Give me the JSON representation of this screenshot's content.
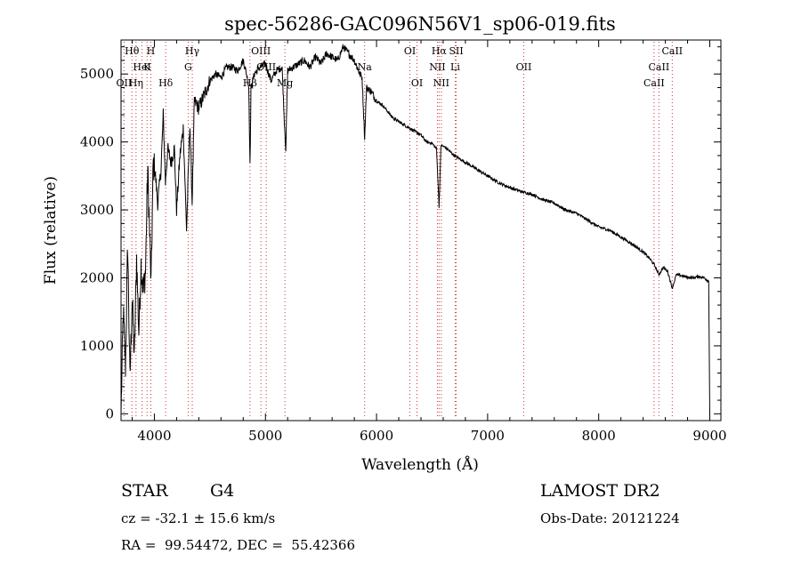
{
  "chart_data": {
    "type": "line",
    "title": "spec-56286-GAC096N56V1_sp06-019.fits",
    "xlabel": "Wavelength (Å)",
    "ylabel": "Flux (relative)",
    "xlim": [
      3700,
      9100
    ],
    "ylim": [
      -100,
      5500
    ],
    "xticks": [
      4000,
      5000,
      6000,
      7000,
      8000,
      9000
    ],
    "yticks": [
      0,
      1000,
      2000,
      3000,
      4000,
      5000
    ],
    "grid": false,
    "legend": "none",
    "line_color": "#000000",
    "marker_color": "#d03030",
    "series": [
      {
        "x": [
          3700,
          3720,
          3740,
          3760,
          3780,
          3800,
          3820,
          3840,
          3860,
          3880,
          3900,
          3920,
          3940,
          3960,
          3970,
          3990,
          4010,
          4030,
          4060,
          4080,
          4100,
          4120,
          4150,
          4180,
          4200,
          4230,
          4260,
          4290,
          4320,
          4340,
          4360,
          4400,
          4450,
          4500,
          4550,
          4600,
          4650,
          4700,
          4750,
          4800,
          4830,
          4850,
          4861,
          4870,
          4900,
          4950,
          5000,
          5050,
          5100,
          5150,
          5170,
          5183,
          5200,
          5250,
          5300,
          5350,
          5400,
          5450,
          5500,
          5550,
          5600,
          5650,
          5700,
          5750,
          5800,
          5850,
          5870,
          5893,
          5910,
          5950,
          6000,
          6050,
          6100,
          6150,
          6200,
          6250,
          6300,
          6350,
          6400,
          6450,
          6500,
          6540,
          6563,
          6580,
          6620,
          6700,
          6800,
          6900,
          7000,
          7100,
          7200,
          7300,
          7400,
          7500,
          7600,
          7700,
          7800,
          7900,
          8000,
          8100,
          8200,
          8300,
          8400,
          8450,
          8498,
          8542,
          8580,
          8620,
          8662,
          8700,
          8750,
          8800,
          8850,
          8900,
          8950,
          8990,
          9000
        ],
        "y": [
          0,
          1500,
          700,
          2500,
          500,
          1700,
          800,
          2300,
          1200,
          2200,
          1800,
          2100,
          3600,
          2500,
          1900,
          3700,
          3500,
          3100,
          3600,
          4400,
          3400,
          3900,
          3700,
          3900,
          3000,
          3800,
          4200,
          2700,
          4300,
          3100,
          4600,
          4500,
          4700,
          4900,
          5000,
          4950,
          5100,
          5100,
          5050,
          5200,
          5000,
          4800,
          3650,
          4800,
          5000,
          5100,
          5150,
          4900,
          5050,
          5100,
          4300,
          3900,
          5050,
          5100,
          5150,
          5200,
          5100,
          5250,
          5150,
          5300,
          5250,
          5200,
          5400,
          5300,
          5200,
          5000,
          4950,
          4050,
          4800,
          4750,
          4600,
          4550,
          4450,
          4350,
          4300,
          4250,
          4200,
          4150,
          4100,
          4000,
          3980,
          3900,
          3050,
          3950,
          3920,
          3800,
          3700,
          3600,
          3500,
          3400,
          3330,
          3270,
          3230,
          3150,
          3100,
          3000,
          2950,
          2850,
          2750,
          2700,
          2600,
          2500,
          2380,
          2300,
          2200,
          2050,
          2150,
          2100,
          1850,
          2050,
          2030,
          2010,
          2000,
          2020,
          2000,
          1950,
          0
        ]
      }
    ],
    "line_markers": [
      {
        "name": "Hθ",
        "x": 3798,
        "row": 0
      },
      {
        "name": "H",
        "x": 3968,
        "row": 0
      },
      {
        "name": "Hγ",
        "x": 4341,
        "row": 0
      },
      {
        "name": "OIII",
        "x": 4959,
        "row": 0
      },
      {
        "name": "OI",
        "x": 6300,
        "row": 0
      },
      {
        "name": "Hα",
        "x": 6563,
        "row": 0
      },
      {
        "name": "SII",
        "x": 6717,
        "row": 0
      },
      {
        "name": "CaII",
        "x": 8662,
        "row": 0
      },
      {
        "name": "HeI",
        "x": 3889,
        "row": 1
      },
      {
        "name": "G",
        "x": 4304,
        "row": 1
      },
      {
        "name": "K",
        "x": 3934,
        "row": 1
      },
      {
        "name": "OIII",
        "x": 5007,
        "row": 1
      },
      {
        "name": "Na",
        "x": 5893,
        "row": 1
      },
      {
        "name": "NII",
        "x": 6548,
        "row": 1
      },
      {
        "name": "Li",
        "x": 6708,
        "row": 1
      },
      {
        "name": "OII",
        "x": 7325,
        "row": 1
      },
      {
        "name": "CaII",
        "x": 8542,
        "row": 1
      },
      {
        "name": "OII",
        "x": 3727,
        "row": 2
      },
      {
        "name": "Hη",
        "x": 3835,
        "row": 2
      },
      {
        "name": "Hδ",
        "x": 4102,
        "row": 2
      },
      {
        "name": "Hβ",
        "x": 4861,
        "row": 2
      },
      {
        "name": "Mg",
        "x": 5175,
        "row": 2
      },
      {
        "name": "OI",
        "x": 6364,
        "row": 2
      },
      {
        "name": "NII",
        "x": 6583,
        "row": 2
      },
      {
        "name": "CaII",
        "x": 8498,
        "row": 2
      }
    ]
  },
  "info": {
    "class": "STAR",
    "subclass": "G4",
    "survey": "LAMOST DR2",
    "redshift": "cz = -32.1 ± 15.6 km/s",
    "obs_date": "Obs-Date: 20121224",
    "coords": "RA =  99.54472, DEC =  55.42366"
  }
}
